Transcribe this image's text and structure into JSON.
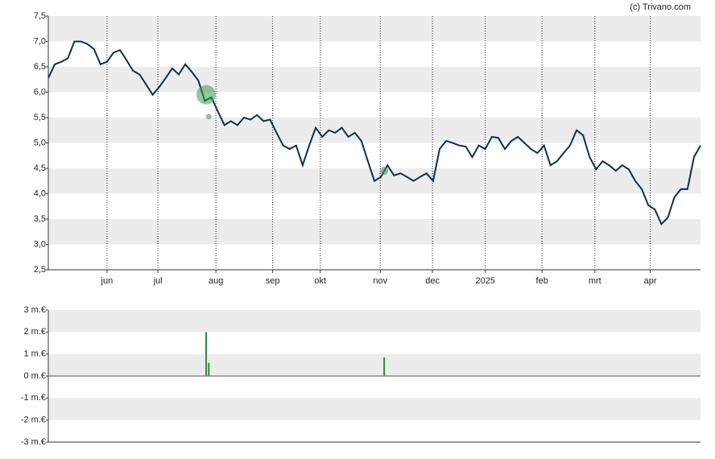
{
  "chart_data": [
    {
      "type": "line",
      "credit": "(c) Trivano.com",
      "xlim": [
        0,
        100
      ],
      "xticks": [
        {
          "value": 9,
          "label": "jun"
        },
        {
          "value": 16.8,
          "label": "jul"
        },
        {
          "value": 25.7,
          "label": "aug"
        },
        {
          "value": 34.4,
          "label": "sep"
        },
        {
          "value": 41.7,
          "label": "okt"
        },
        {
          "value": 50.9,
          "label": "nov"
        },
        {
          "value": 58.9,
          "label": "dec"
        },
        {
          "value": 67,
          "label": "2025"
        },
        {
          "value": 75.7,
          "label": "feb"
        },
        {
          "value": 83.8,
          "label": "mrt"
        },
        {
          "value": 92.3,
          "label": "apr"
        }
      ],
      "ylim": [
        2.5,
        7.5
      ],
      "yticks": [
        {
          "value": 2.5,
          "label": "2,5"
        },
        {
          "value": 3,
          "label": "3,0"
        },
        {
          "value": 3.5,
          "label": "3,5"
        },
        {
          "value": 4,
          "label": "4,0"
        },
        {
          "value": 4.5,
          "label": "4,5"
        },
        {
          "value": 5,
          "label": "5,0"
        },
        {
          "value": 5.5,
          "label": "5,5"
        },
        {
          "value": 6,
          "label": "6,0"
        },
        {
          "value": 6.5,
          "label": "6,5"
        },
        {
          "value": 7,
          "label": "7,0"
        },
        {
          "value": 7.5,
          "label": "7,5"
        }
      ],
      "color": "#0d3050",
      "values": [
        6.28,
        6.55,
        6.6,
        6.67,
        7.0,
        7.0,
        6.95,
        6.85,
        6.55,
        6.6,
        6.78,
        6.83,
        6.63,
        6.42,
        6.35,
        6.15,
        5.95,
        6.1,
        6.28,
        6.47,
        6.35,
        6.55,
        6.4,
        6.23,
        5.83,
        5.9,
        5.62,
        5.35,
        5.43,
        5.35,
        5.5,
        5.46,
        5.55,
        5.43,
        5.46,
        5.2,
        4.95,
        4.88,
        4.95,
        4.56,
        4.95,
        5.3,
        5.12,
        5.25,
        5.2,
        5.3,
        5.12,
        5.2,
        5.04,
        4.64,
        4.25,
        4.33,
        4.56,
        4.36,
        4.4,
        4.33,
        4.25,
        4.33,
        4.4,
        4.25,
        4.88,
        5.04,
        5.0,
        4.95,
        4.93,
        4.72,
        4.95,
        4.88,
        5.12,
        5.1,
        4.88,
        5.04,
        5.12,
        5.0,
        4.88,
        4.8,
        4.95,
        4.56,
        4.64,
        4.8,
        4.95,
        5.25,
        5.15,
        4.72,
        4.48,
        4.64,
        4.56,
        4.45,
        4.56,
        4.48,
        4.25,
        4.09,
        3.77,
        3.69,
        3.4,
        3.53,
        3.93,
        4.09,
        4.09,
        4.72,
        4.95
      ],
      "markers": {
        "color": "#3a9a4a",
        "x": [
          24.2,
          24.6,
          51.5
        ],
        "values": [
          5.95,
          5.52,
          4.45
        ],
        "sizes": [
          2,
          0.6,
          0.85
        ]
      }
    },
    {
      "type": "bar",
      "color": "#2e8b3e",
      "xlim": [
        0,
        100
      ],
      "ylim": [
        -3,
        3
      ],
      "yticks": [
        {
          "value": -3,
          "label": "-3 m.€"
        },
        {
          "value": -2,
          "label": "-2 m.€"
        },
        {
          "value": -1,
          "label": "-1 m.€"
        },
        {
          "value": 0,
          "label": "0 m.€"
        },
        {
          "value": 1,
          "label": "1 m.€"
        },
        {
          "value": 2,
          "label": "2 m.€"
        },
        {
          "value": 3,
          "label": "3 m.€"
        }
      ],
      "x": [
        9.5,
        24.2,
        24.6,
        51.5
      ],
      "values": [
        0.02,
        2,
        0.6,
        0.85
      ]
    }
  ]
}
